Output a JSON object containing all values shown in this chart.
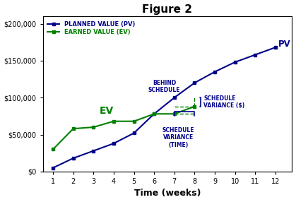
{
  "title": "Figure 2",
  "xlabel": "Time (weeks)",
  "pv_x": [
    1,
    2,
    3,
    4,
    5,
    6,
    7,
    8,
    9,
    10,
    11,
    12
  ],
  "pv_y": [
    5000,
    18000,
    28000,
    38000,
    52000,
    78000,
    100000,
    120000,
    135000,
    148000,
    158000,
    168000
  ],
  "ev_x": [
    1,
    2,
    3,
    4,
    5,
    6,
    7,
    8
  ],
  "ev_y": [
    30000,
    58000,
    60000,
    68000,
    68000,
    78000,
    78000,
    88000
  ],
  "pv_color": "#00008B",
  "ev_color": "#008000",
  "ann_color": "#00008B",
  "ylim": [
    0,
    210000
  ],
  "xlim": [
    0.5,
    12.8
  ],
  "yticks": [
    0,
    50000,
    100000,
    150000,
    200000
  ],
  "ytick_labels": [
    "$0",
    "$50,000",
    "$100,000",
    "$150,000",
    "$200,000"
  ],
  "xticks": [
    1,
    2,
    3,
    4,
    5,
    6,
    7,
    8,
    9,
    10,
    11,
    12
  ],
  "figsize": [
    4.19,
    2.86
  ],
  "dpi": 100
}
